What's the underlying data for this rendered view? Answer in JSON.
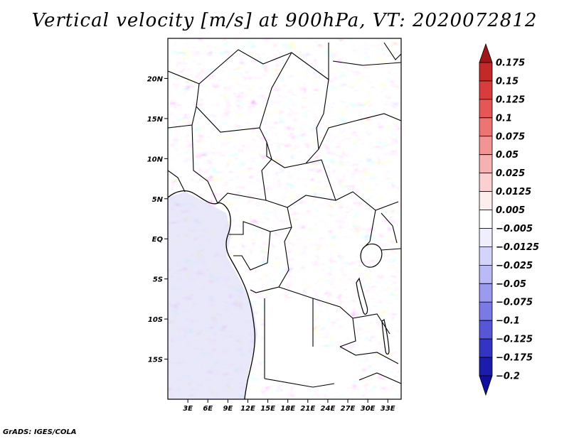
{
  "title": "Vertical velocity [m/s] at 900hPa, VT: 2020072812",
  "credit": "GrADS: IGES/COLA",
  "map": {
    "lon_range": [
      0,
      35
    ],
    "lat_range": [
      -20,
      25
    ],
    "lon_ticks": [
      {
        "v": 3,
        "label": "3E"
      },
      {
        "v": 6,
        "label": "6E"
      },
      {
        "v": 9,
        "label": "9E"
      },
      {
        "v": 12,
        "label": "12E"
      },
      {
        "v": 15,
        "label": "15E"
      },
      {
        "v": 18,
        "label": "18E"
      },
      {
        "v": 21,
        "label": "21E"
      },
      {
        "v": 24,
        "label": "24E"
      },
      {
        "v": 27,
        "label": "27E"
      },
      {
        "v": 30,
        "label": "30E"
      },
      {
        "v": 33,
        "label": "33E"
      }
    ],
    "lat_ticks": [
      {
        "v": 20,
        "label": "20N"
      },
      {
        "v": 15,
        "label": "15N"
      },
      {
        "v": 10,
        "label": "10N"
      },
      {
        "v": 5,
        "label": "5N"
      },
      {
        "v": 0,
        "label": "EQ"
      },
      {
        "v": -5,
        "label": "5S"
      },
      {
        "v": -10,
        "label": "10S"
      },
      {
        "v": -15,
        "label": "15S"
      }
    ]
  },
  "colorbar": {
    "labels": [
      "0.175",
      "0.15",
      "0.125",
      "0.1",
      "0.075",
      "0.05",
      "0.025",
      "0.0125",
      "0.005",
      "−0.005",
      "−0.0125",
      "−0.025",
      "−0.05",
      "−0.075",
      "−0.1",
      "−0.125",
      "−0.175",
      "−0.2"
    ],
    "colors": [
      "#a01616",
      "#c42828",
      "#d83c3c",
      "#e65656",
      "#ec7474",
      "#f29494",
      "#f6b2b2",
      "#fad0d0",
      "#fdeeee",
      "#ffffff",
      "#eeeeff",
      "#d4d4fb",
      "#babaf6",
      "#9a9aee",
      "#7a7ae4",
      "#5656d6",
      "#3434c2",
      "#1c1cac",
      "#10109a"
    ]
  }
}
